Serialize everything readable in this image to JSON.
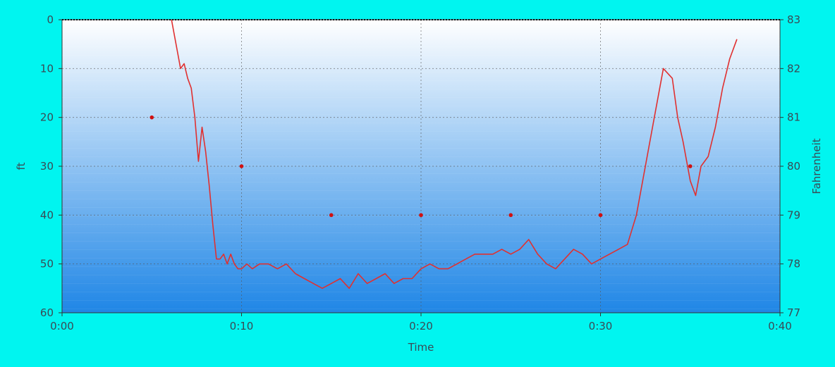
{
  "colors": {
    "background": "#00f5f0",
    "plot_top": "#ffffff",
    "plot_bottom": "#1f86e6",
    "depth_line": "#e03030",
    "temp_marker": "#d01010",
    "grid": "#555555"
  },
  "chart_data": {
    "type": "line",
    "xlabel": "Time",
    "ylabel": "ft",
    "y2label": "Fahrenheit",
    "xlim": [
      0,
      40
    ],
    "ylim": [
      0,
      60
    ],
    "y_inverted": true,
    "y2lim": [
      77,
      83
    ],
    "grid": true,
    "x_ticks": [
      "0:00",
      "0:10",
      "0:20",
      "0:30",
      "0:40"
    ],
    "y_ticks": [
      "0",
      "10",
      "20",
      "30",
      "40",
      "50",
      "60"
    ],
    "y2_ticks": [
      "83",
      "82",
      "81",
      "80",
      "79",
      "78",
      "77"
    ],
    "series": [
      {
        "axis": "left",
        "x": [
          6.1,
          6.4,
          6.6,
          6.8,
          7.0,
          7.2,
          7.4,
          7.6,
          7.8,
          8.0,
          8.2,
          8.4,
          8.6,
          8.8,
          9.0,
          9.2,
          9.4,
          9.6,
          9.8,
          10.0,
          10.3,
          10.6,
          11.0,
          11.5,
          12.0,
          12.5,
          13.0,
          13.5,
          14.0,
          14.5,
          15.0,
          15.5,
          16.0,
          16.5,
          17.0,
          17.5,
          18.0,
          18.5,
          19.0,
          19.5,
          20.0,
          20.5,
          21.0,
          21.5,
          22.0,
          22.5,
          23.0,
          23.5,
          24.0,
          24.5,
          25.0,
          25.5,
          26.0,
          26.5,
          27.0,
          27.5,
          28.0,
          28.5,
          29.0,
          29.5,
          30.0,
          30.5,
          31.0,
          31.5,
          32.0,
          32.5,
          33.0,
          33.5,
          34.0,
          34.3,
          34.6,
          35.0,
          35.3,
          35.6,
          36.0,
          36.4,
          36.8,
          37.2,
          37.6
        ],
        "values": [
          0,
          6,
          10,
          9,
          12,
          14,
          20,
          29,
          22,
          27,
          34,
          42,
          49,
          49,
          48,
          50,
          48,
          50,
          51,
          51,
          50,
          51,
          50,
          50,
          51,
          50,
          52,
          53,
          54,
          55,
          54,
          53,
          55,
          52,
          54,
          53,
          52,
          54,
          53,
          53,
          51,
          50,
          51,
          51,
          50,
          49,
          48,
          48,
          48,
          47,
          48,
          47,
          45,
          48,
          50,
          51,
          49,
          47,
          48,
          50,
          49,
          48,
          47,
          46,
          40,
          30,
          20,
          10,
          12,
          20,
          25,
          33,
          36,
          30,
          28,
          22,
          14,
          8,
          4
        ]
      },
      {
        "axis": "right",
        "x": [
          5,
          10,
          15,
          20,
          25,
          30,
          35
        ],
        "values": [
          81,
          80,
          79,
          79,
          79,
          79,
          80
        ]
      }
    ]
  }
}
